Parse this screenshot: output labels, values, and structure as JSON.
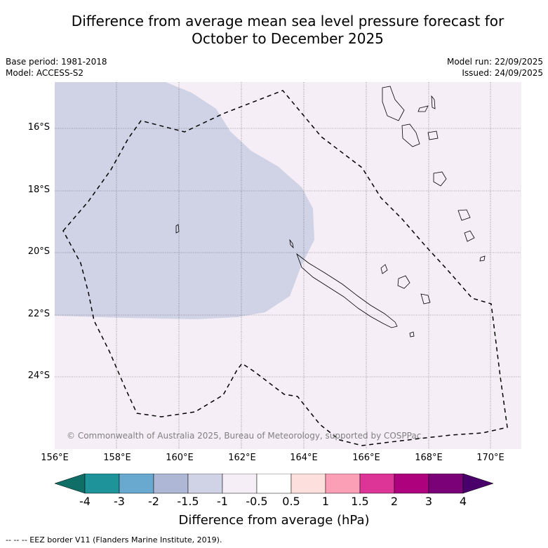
{
  "title_line1": "Difference from average mean sea level pressure forecast for",
  "title_line2": "October to December 2025",
  "base_period": "Base period: 1981-2018",
  "model": "Model: ACCESS-S2",
  "model_run": "Model run: 22/09/2025",
  "issued": "Issued: 24/09/2025",
  "copyright": "© Commonwealth of Australia 2025, Bureau of Meteorology, supported by COSPPac",
  "lat_labels": [
    "16°S",
    "18°S",
    "20°S",
    "22°S",
    "24°S"
  ],
  "lon_labels": [
    "156°E",
    "158°E",
    "160°E",
    "162°E",
    "164°E",
    "166°E",
    "168°E",
    "170°E"
  ],
  "colorbar": {
    "ticks": [
      "-4",
      "-3",
      "-2",
      "-1.5",
      "-1",
      "-0.5",
      "0.5",
      "1",
      "1.5",
      "2",
      "3",
      "4"
    ],
    "colors": [
      "#0f6e66",
      "#1e9399",
      "#69a9d0",
      "#aeb8d6",
      "#d0d2e6",
      "#f5eef6",
      "#ffffff",
      "#fde0dd",
      "#fa9fb5",
      "#dd3497",
      "#ae017e",
      "#7a0177",
      "#49006a"
    ],
    "label": "Difference from average (hPa)"
  },
  "legend_eez": "-- -- -- EEZ border V11 (Flanders Marine Institute, 2019).",
  "colors": {
    "background_region": "#f5eef6",
    "negative_region": "#d0d2e6"
  }
}
